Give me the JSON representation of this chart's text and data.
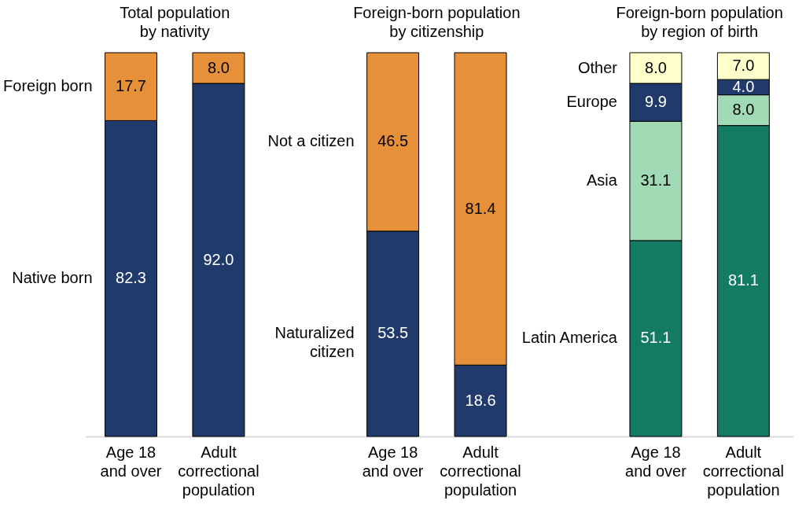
{
  "chart_data": [
    {
      "type": "bar",
      "title": "Total population\nby nativity",
      "categories": [
        "Age 18\nand over",
        "Adult\ncorrectional\npopulation"
      ],
      "stacked": true,
      "legend": false,
      "tick_labels": "x",
      "series": [
        {
          "name": "Native born",
          "color": "#203a6c",
          "values": [
            82.3,
            92.0
          ],
          "value_labels": [
            "82.3",
            "92.0"
          ]
        },
        {
          "name": "Foreign born",
          "color": "#e69039",
          "values": [
            17.7,
            8.0
          ],
          "value_labels": [
            "17.7",
            "8.0"
          ]
        }
      ]
    },
    {
      "type": "bar",
      "title": "Foreign-born population\nby citizenship",
      "categories": [
        "Age 18\nand over",
        "Adult\ncorrectional\npopulation"
      ],
      "stacked": true,
      "legend": false,
      "tick_labels": "x",
      "series": [
        {
          "name": "Naturalized\ncitizen",
          "color": "#203a6c",
          "values": [
            53.5,
            18.6
          ],
          "value_labels": [
            "53.5",
            "18.6"
          ]
        },
        {
          "name": "Not a citizen",
          "color": "#e69039",
          "values": [
            46.5,
            81.4
          ],
          "value_labels": [
            "46.5",
            "81.4"
          ]
        }
      ]
    },
    {
      "type": "bar",
      "title": "Foreign-born population\nby region of birth",
      "categories": [
        "Age 18\nand over",
        "Adult\ncorrectional\npopulation"
      ],
      "stacked": true,
      "legend": false,
      "tick_labels": "x",
      "series": [
        {
          "name": "Latin America",
          "color": "#137a63",
          "values": [
            51.1,
            81.1
          ],
          "value_labels": [
            "51.1",
            "81.1"
          ]
        },
        {
          "name": "Asia",
          "color": "#a1dab4",
          "values": [
            31.1,
            8.0
          ],
          "value_labels": [
            "31.1",
            "8.0"
          ]
        },
        {
          "name": "Europe",
          "color": "#203a6c",
          "values": [
            9.9,
            4.0
          ],
          "value_labels": [
            "9.9",
            "4.0"
          ]
        },
        {
          "name": "Other",
          "color": "#ffffcc",
          "values": [
            8.0,
            7.0
          ],
          "value_labels": [
            "8.0",
            "7.0"
          ]
        }
      ]
    }
  ]
}
